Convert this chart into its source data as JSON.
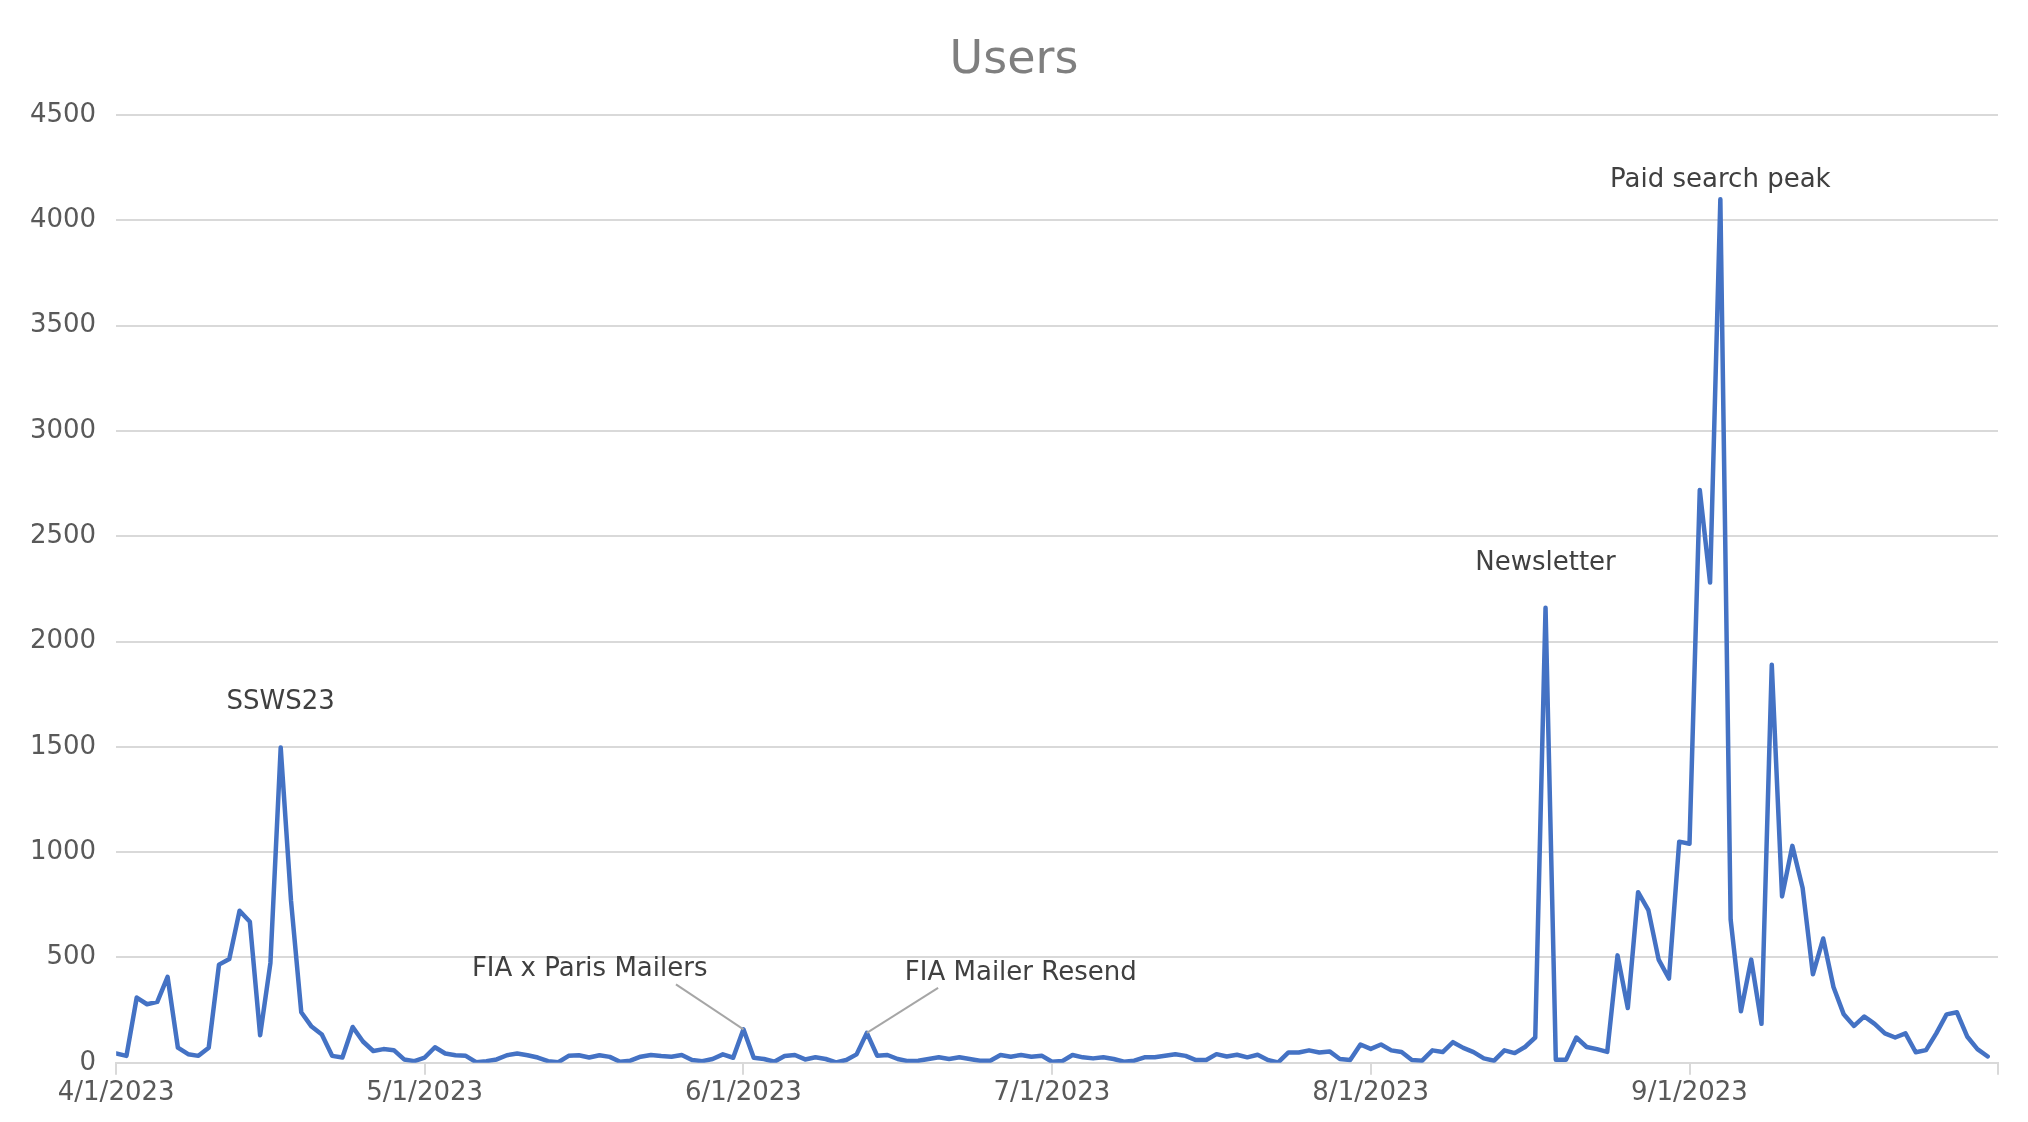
{
  "chart_data": {
    "type": "line",
    "title": "Users",
    "x": [
      "2023-04-01",
      "2023-04-02",
      "2023-04-03",
      "2023-04-04",
      "2023-04-05",
      "2023-04-06",
      "2023-04-07",
      "2023-04-08",
      "2023-04-09",
      "2023-04-10",
      "2023-04-11",
      "2023-04-12",
      "2023-04-13",
      "2023-04-14",
      "2023-04-15",
      "2023-04-16",
      "2023-04-17",
      "2023-04-18",
      "2023-04-19",
      "2023-04-20",
      "2023-04-21",
      "2023-04-22",
      "2023-04-23",
      "2023-04-24",
      "2023-04-25",
      "2023-04-26",
      "2023-04-27",
      "2023-04-28",
      "2023-04-29",
      "2023-04-30",
      "2023-05-01",
      "2023-05-02",
      "2023-05-03",
      "2023-05-04",
      "2023-05-05",
      "2023-05-06",
      "2023-05-07",
      "2023-05-08",
      "2023-05-09",
      "2023-05-10",
      "2023-05-11",
      "2023-05-12",
      "2023-05-13",
      "2023-05-14",
      "2023-05-15",
      "2023-05-16",
      "2023-05-17",
      "2023-05-18",
      "2023-05-19",
      "2023-05-20",
      "2023-05-21",
      "2023-05-22",
      "2023-05-23",
      "2023-05-24",
      "2023-05-25",
      "2023-05-26",
      "2023-05-27",
      "2023-05-28",
      "2023-05-29",
      "2023-05-30",
      "2023-05-31",
      "2023-06-01",
      "2023-06-02",
      "2023-06-03",
      "2023-06-04",
      "2023-06-05",
      "2023-06-06",
      "2023-06-07",
      "2023-06-08",
      "2023-06-09",
      "2023-06-10",
      "2023-06-11",
      "2023-06-12",
      "2023-06-13",
      "2023-06-14",
      "2023-06-15",
      "2023-06-16",
      "2023-06-17",
      "2023-06-18",
      "2023-06-19",
      "2023-06-20",
      "2023-06-21",
      "2023-06-22",
      "2023-06-23",
      "2023-06-24",
      "2023-06-25",
      "2023-06-26",
      "2023-06-27",
      "2023-06-28",
      "2023-06-29",
      "2023-06-30",
      "2023-07-01",
      "2023-07-02",
      "2023-07-03",
      "2023-07-04",
      "2023-07-05",
      "2023-07-06",
      "2023-07-07",
      "2023-07-08",
      "2023-07-09",
      "2023-07-10",
      "2023-07-11",
      "2023-07-12",
      "2023-07-13",
      "2023-07-14",
      "2023-07-15",
      "2023-07-16",
      "2023-07-17",
      "2023-07-18",
      "2023-07-19",
      "2023-07-20",
      "2023-07-21",
      "2023-07-22",
      "2023-07-23",
      "2023-07-24",
      "2023-07-25",
      "2023-07-26",
      "2023-07-27",
      "2023-07-28",
      "2023-07-29",
      "2023-07-30",
      "2023-07-31",
      "2023-08-01",
      "2023-08-02",
      "2023-08-03",
      "2023-08-04",
      "2023-08-05",
      "2023-08-06",
      "2023-08-07",
      "2023-08-08",
      "2023-08-09",
      "2023-08-10",
      "2023-08-11",
      "2023-08-12",
      "2023-08-13",
      "2023-08-14",
      "2023-08-15",
      "2023-08-16",
      "2023-08-17",
      "2023-08-18",
      "2023-08-19",
      "2023-08-20",
      "2023-08-21",
      "2023-08-22",
      "2023-08-23",
      "2023-08-24",
      "2023-08-25",
      "2023-08-26",
      "2023-08-27",
      "2023-08-28",
      "2023-08-29",
      "2023-08-30",
      "2023-08-31",
      "2023-09-01",
      "2023-09-02",
      "2023-09-03",
      "2023-09-04",
      "2023-09-05",
      "2023-09-06",
      "2023-09-07",
      "2023-09-08",
      "2023-09-09",
      "2023-09-10",
      "2023-09-11",
      "2023-09-12",
      "2023-09-13",
      "2023-09-14",
      "2023-09-15",
      "2023-09-16",
      "2023-09-17",
      "2023-09-18",
      "2023-09-19",
      "2023-09-20",
      "2023-09-21",
      "2023-09-22",
      "2023-09-23",
      "2023-09-24",
      "2023-09-25",
      "2023-09-26",
      "2023-09-27",
      "2023-09-28",
      "2023-09-29",
      "2023-09-30"
    ],
    "series": [
      {
        "color": "#4472c4",
        "values": [
          44,
          33,
          310,
          278,
          289,
          408,
          72,
          41,
          33,
          72,
          466,
          493,
          722,
          670,
          131,
          474,
          1497,
          771,
          240,
          172,
          134,
          33,
          25,
          170,
          101,
          56,
          65,
          60,
          16,
          8,
          25,
          74,
          44,
          36,
          33,
          3,
          8,
          16,
          36,
          44,
          36,
          25,
          8,
          3,
          33,
          36,
          25,
          36,
          28,
          5,
          10,
          29,
          37,
          32,
          29,
          37,
          13,
          8,
          18,
          40,
          24,
          159,
          24,
          18,
          5,
          32,
          37,
          16,
          26,
          18,
          2,
          13,
          40,
          142,
          34,
          37,
          18,
          8,
          10,
          18,
          26,
          18,
          26,
          18,
          10,
          10,
          37,
          29,
          37,
          29,
          34,
          5,
          8,
          37,
          26,
          21,
          26,
          18,
          5,
          10,
          26,
          26,
          33,
          41,
          33,
          13,
          13,
          41,
          30,
          38,
          26,
          38,
          13,
          2,
          49,
          49,
          59,
          49,
          54,
          18,
          13,
          87,
          66,
          87,
          59,
          51,
          13,
          10,
          59,
          51,
          98,
          71,
          51,
          21,
          10,
          59,
          46,
          75,
          120,
          2160,
          15,
          15,
          120,
          75,
          65,
          52,
          510,
          260,
          810,
          725,
          490,
          400,
          1050,
          1040,
          2720,
          2280,
          4100,
          680,
          245,
          490,
          185,
          1890,
          790,
          1030,
          830,
          420,
          590,
          360,
          230,
          175,
          220,
          185,
          140,
          120,
          140,
          50,
          60,
          140,
          230,
          240,
          125,
          65,
          30
        ]
      }
    ],
    "xlim": [
      "2023-04-01",
      "2023-10-01"
    ],
    "xticks": [
      {
        "value": "2023-04-01",
        "label": "4/1/2023"
      },
      {
        "value": "2023-05-01",
        "label": "5/1/2023"
      },
      {
        "value": "2023-06-01",
        "label": "6/1/2023"
      },
      {
        "value": "2023-07-01",
        "label": "7/1/2023"
      },
      {
        "value": "2023-08-01",
        "label": "8/1/2023"
      },
      {
        "value": "2023-09-01",
        "label": "9/1/2023"
      },
      {
        "value": "2023-10-01",
        "label": null
      }
    ],
    "ylim": [
      0,
      4500
    ],
    "yticks": [
      0,
      500,
      1000,
      1500,
      2000,
      2500,
      3000,
      3500,
      4000,
      4500
    ],
    "grid": "y",
    "legend": false,
    "marker": "none",
    "line_style": "solid",
    "annotations": [
      {
        "text": "SSWS23",
        "x": "2023-04-17",
        "y": 1497
      },
      {
        "text": "FIA x Paris Mailers",
        "x": "2023-06-01",
        "y": 159
      },
      {
        "text": "FIA Mailer Resend",
        "x": "2023-06-13",
        "y": 142
      },
      {
        "text": "Newsletter",
        "x": "2023-08-18",
        "y": 2160
      },
      {
        "text": "Paid search peak",
        "x": "2023-09-04",
        "y": 4100
      }
    ]
  }
}
